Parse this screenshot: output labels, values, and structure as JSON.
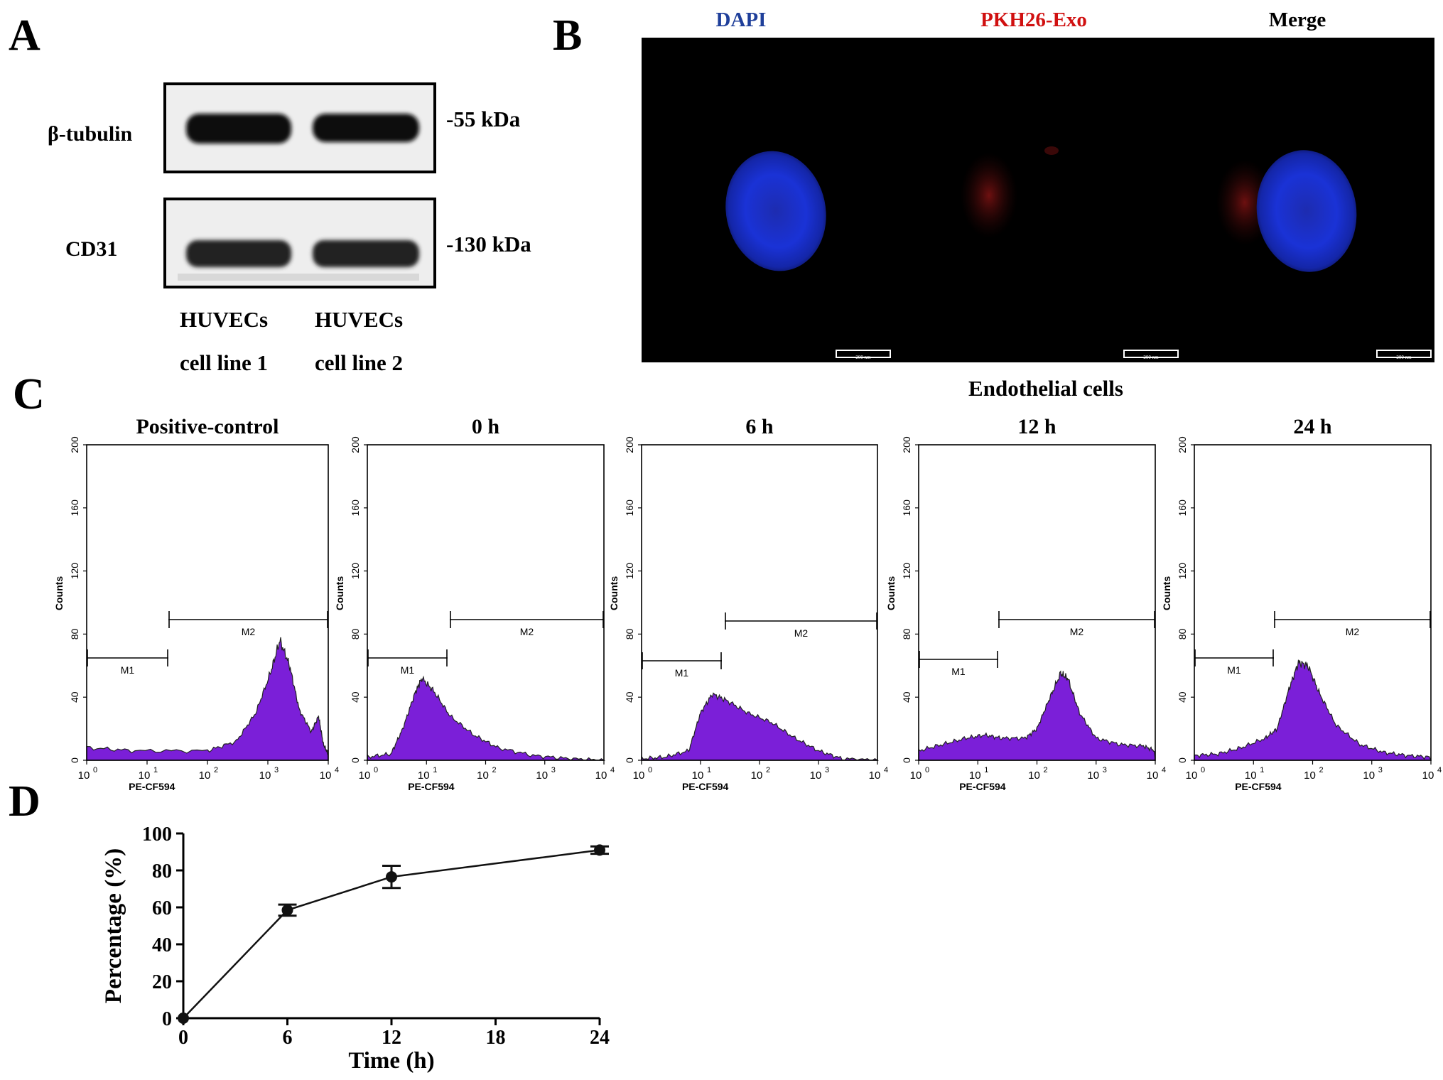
{
  "panel_a": {
    "letter": "A",
    "row_labels": [
      "β-tubulin",
      "CD31"
    ],
    "kda_labels": [
      "-55 kDa",
      "-130 kDa"
    ],
    "lanes": [
      {
        "line1": "HUVECs",
        "line2": "cell line 1"
      },
      {
        "line1": "HUVECs",
        "line2": "cell line 2"
      }
    ]
  },
  "panel_b": {
    "letter": "B",
    "channels": [
      {
        "label": "DAPI",
        "color": "#1f3f9a"
      },
      {
        "label": "PKH26-Exo",
        "color": "#d01010"
      },
      {
        "label": "Merge",
        "color": "#000000"
      }
    ],
    "scale_bar": "200 nm",
    "caption": "Endothelial cells",
    "colors": {
      "nucleus": "#1a2fd0",
      "exosome": "#8a1414",
      "background": "#000000"
    }
  },
  "panel_c": {
    "letter": "C",
    "histogram_color": "#7b1fd8",
    "ylabel": "Counts",
    "xlabel": "PE-CF594",
    "yticks": [
      "0",
      "40",
      "80",
      "120",
      "160",
      "200"
    ],
    "xticks": [
      "10",
      "10",
      "10",
      "10",
      "10"
    ],
    "xtick_exps": [
      "0",
      "1",
      "2",
      "3",
      "4"
    ],
    "gates": [
      "M1",
      "M2"
    ],
    "plots": [
      {
        "title": "Positive-control"
      },
      {
        "title": "0 h"
      },
      {
        "title": "6 h"
      },
      {
        "title": "12 h"
      },
      {
        "title": "24 h"
      }
    ]
  },
  "chart_data": {
    "type": "line",
    "panel_letter": "D",
    "xlabel": "Time (h)",
    "ylabel": "Percentage (%)",
    "xlim": [
      0,
      24
    ],
    "ylim": [
      0,
      100
    ],
    "xticks": [
      "0",
      "6",
      "12",
      "18",
      "24"
    ],
    "yticks": [
      "0",
      "20",
      "40",
      "60",
      "80",
      "100"
    ],
    "x": [
      0,
      6,
      12,
      24
    ],
    "y": [
      0,
      58.5,
      76.5,
      91
    ],
    "err": [
      0,
      3,
      6,
      2
    ],
    "grid": false
  }
}
